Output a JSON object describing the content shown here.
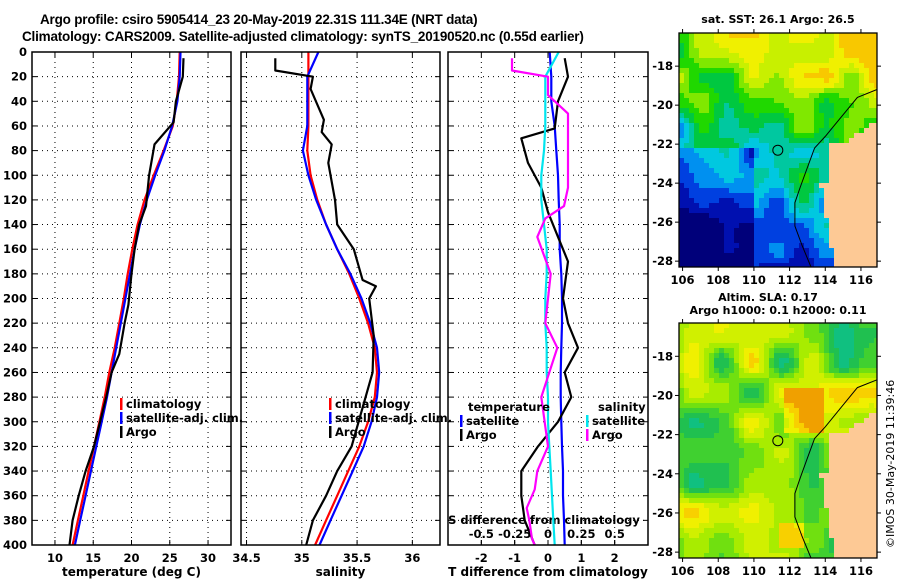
{
  "header": {
    "line1": "Argo profile: csiro 5905414_23 20-May-2019 22.31S 111.34E (NRT data)",
    "line2": "Climatology: CARS2009. Satellite-adjusted climatology: synTS_20190520.nc (0.55d earlier)"
  },
  "colors": {
    "climatology": "#ff0000",
    "satellite_adj": "#0000ff",
    "argo": "#000000",
    "s_satellite": "#00e5ee",
    "s_argo": "#ff00ff",
    "land": "#fdc995"
  },
  "chart_data": [
    {
      "id": "temperature",
      "type": "line",
      "xlabel": "temperature (deg C)",
      "ylabel": "",
      "xlim": [
        7,
        33
      ],
      "ylim": [
        400,
        0
      ],
      "xticks": [
        10,
        15,
        20,
        25,
        30
      ],
      "yticks": [
        0,
        20,
        40,
        60,
        80,
        100,
        120,
        140,
        160,
        180,
        200,
        220,
        240,
        260,
        280,
        300,
        320,
        340,
        360,
        380,
        400
      ],
      "grid": true,
      "legend": {
        "position": "center-right",
        "entries": [
          "climatology",
          "satellite-adj. clim.",
          "Argo"
        ]
      },
      "series": [
        {
          "name": "climatology",
          "color": "#ff0000",
          "x": [
            26.3,
            26.2,
            25.9,
            25.4,
            24.2,
            22.9,
            21.7,
            20.8,
            20.1,
            19.5,
            19.0,
            18.4,
            17.8,
            17.1,
            16.5,
            15.8,
            15.1,
            14.4,
            13.7,
            13.0,
            12.3
          ],
          "y": [
            0,
            20,
            40,
            60,
            80,
            100,
            120,
            140,
            160,
            180,
            200,
            220,
            240,
            260,
            280,
            300,
            320,
            340,
            360,
            380,
            400
          ]
        },
        {
          "name": "satellite-adj. clim.",
          "color": "#0000ff",
          "x": [
            26.4,
            26.3,
            26.0,
            25.3,
            24.3,
            23.1,
            22.0,
            21.1,
            20.4,
            19.8,
            19.2,
            18.6,
            18.0,
            17.4,
            16.8,
            16.1,
            15.4,
            14.7,
            14.0,
            13.3,
            12.6
          ],
          "y": [
            0,
            20,
            40,
            60,
            80,
            100,
            120,
            140,
            160,
            180,
            200,
            220,
            240,
            260,
            280,
            300,
            320,
            340,
            360,
            380,
            400
          ]
        },
        {
          "name": "Argo",
          "color": "#000000",
          "x": [
            26.8,
            26.7,
            25.8,
            25.5,
            23.0,
            22.3,
            21.9,
            21.0,
            20.4,
            20.0,
            19.6,
            19.1,
            18.4,
            17.4,
            16.7,
            15.9,
            15.1,
            14.0,
            13.1,
            12.3,
            11.9
          ],
          "y": [
            5,
            20,
            40,
            57,
            75,
            100,
            125,
            140,
            160,
            180,
            205,
            220,
            245,
            260,
            280,
            300,
            320,
            340,
            360,
            380,
            400
          ]
        }
      ]
    },
    {
      "id": "salinity",
      "type": "line",
      "xlabel": "salinity",
      "xlim": [
        34.45,
        36.25
      ],
      "ylim": [
        400,
        0
      ],
      "xticks": [
        34.5,
        35,
        35.5,
        36
      ],
      "xtick_labels": [
        "34.5",
        "35",
        "35.5",
        "36"
      ],
      "grid": true,
      "legend": {
        "position": "center-right",
        "entries": [
          "climatology",
          "satellite-adj. clim.",
          "Argo"
        ]
      },
      "series": [
        {
          "name": "climatology",
          "color": "#ff0000",
          "x": [
            35.06,
            35.06,
            35.06,
            35.06,
            35.05,
            35.08,
            35.14,
            35.22,
            35.32,
            35.43,
            35.52,
            35.6,
            35.66,
            35.68,
            35.66,
            35.6,
            35.52,
            35.42,
            35.32,
            35.22,
            35.12
          ],
          "y": [
            0,
            20,
            40,
            60,
            80,
            100,
            120,
            140,
            160,
            180,
            200,
            220,
            240,
            260,
            280,
            300,
            320,
            340,
            360,
            380,
            400
          ]
        },
        {
          "name": "satellite-adj. clim.",
          "color": "#0000ff",
          "x": [
            35.15,
            35.05,
            35.05,
            35.05,
            35.01,
            35.06,
            35.13,
            35.22,
            35.32,
            35.44,
            35.54,
            35.62,
            35.68,
            35.7,
            35.68,
            35.63,
            35.56,
            35.46,
            35.36,
            35.26,
            35.16
          ],
          "y": [
            0,
            20,
            40,
            60,
            80,
            100,
            120,
            140,
            160,
            180,
            200,
            220,
            240,
            260,
            280,
            300,
            320,
            340,
            360,
            380,
            400
          ]
        },
        {
          "name": "Argo",
          "color": "#000000",
          "x": [
            34.76,
            34.76,
            35.1,
            35.08,
            35.2,
            35.18,
            35.27,
            35.24,
            35.3,
            35.32,
            35.47,
            35.55,
            35.67,
            35.61,
            35.65,
            35.64,
            35.45,
            35.32,
            35.22,
            35.1,
            35.04
          ],
          "y": [
            5,
            15,
            20,
            30,
            55,
            65,
            75,
            90,
            120,
            140,
            160,
            185,
            190,
            200,
            230,
            260,
            320,
            340,
            360,
            380,
            400
          ]
        }
      ]
    },
    {
      "id": "difference",
      "type": "line",
      "xlabel": "T difference from climatology",
      "xlim": [
        -3,
        3
      ],
      "ylim": [
        400,
        0
      ],
      "xticks": [
        -2,
        -1,
        0,
        1,
        2
      ],
      "grid": true,
      "secondary_axis": {
        "label": "S difference from climatology",
        "xlim": [
          -0.75,
          0.75
        ],
        "xticks": [
          -0.5,
          -0.25,
          0,
          0.25,
          0.5
        ],
        "xtick_labels": [
          "-0.5",
          "-0.25",
          "0",
          "0.25",
          "0.5"
        ]
      },
      "legend": {
        "temperature": {
          "title": "temperature",
          "entries": [
            "satellite",
            "Argo"
          ]
        },
        "salinity": {
          "title": "salinity",
          "entries": [
            "satellite",
            "Argo"
          ]
        }
      },
      "series": [
        {
          "name": "T satellite",
          "color": "#0000ff",
          "x": [
            0.05,
            0.1,
            0.1,
            0.2,
            0.25,
            0.3,
            0.32,
            0.35,
            0.35,
            0.4,
            0.42,
            0.42,
            0.4,
            0.38,
            0.38,
            0.4,
            0.42,
            0.45,
            0.45,
            0.48,
            0.5
          ],
          "y": [
            0,
            20,
            40,
            60,
            80,
            100,
            120,
            140,
            160,
            180,
            200,
            220,
            240,
            260,
            280,
            300,
            320,
            340,
            360,
            380,
            400
          ]
        },
        {
          "name": "T Argo",
          "color": "#000000",
          "x": [
            0.5,
            0.6,
            0.3,
            0.2,
            -0.8,
            -0.6,
            -0.2,
            0.0,
            0.3,
            0.6,
            0.45,
            0.6,
            0.9,
            0.5,
            0.7,
            0.3,
            -0.3,
            -0.8,
            -0.8,
            -0.7,
            -0.4
          ],
          "y": [
            5,
            20,
            40,
            62,
            70,
            90,
            110,
            130,
            150,
            170,
            200,
            220,
            240,
            260,
            280,
            300,
            320,
            340,
            360,
            380,
            400
          ]
        },
        {
          "name": "S satellite",
          "color": "#00e5ee",
          "x": [
            0.08,
            -0.02,
            -0.02,
            -0.02,
            -0.03,
            -0.05,
            -0.05,
            -0.03,
            -0.01,
            -0.01,
            -0.02,
            -0.02,
            -0.01,
            -0.01,
            0.0,
            0.0,
            0.01,
            0.02,
            0.03,
            0.04,
            0.05
          ],
          "y": [
            0,
            20,
            40,
            60,
            80,
            100,
            120,
            140,
            160,
            180,
            200,
            220,
            240,
            260,
            280,
            300,
            320,
            340,
            360,
            380,
            400
          ]
        },
        {
          "name": "S Argo",
          "color": "#ff00ff",
          "x": [
            -0.27,
            -0.27,
            0.0,
            0.0,
            0.15,
            0.15,
            0.15,
            0.12,
            -0.02,
            -0.08,
            0.02,
            -0.02,
            0.07,
            -0.05,
            0.0,
            -0.08,
            -0.1,
            -0.16,
            -0.14,
            -0.12,
            -0.1
          ],
          "y": [
            5,
            15,
            20,
            35,
            50,
            70,
            110,
            125,
            135,
            150,
            180,
            220,
            240,
            280,
            320,
            340,
            355,
            370,
            380,
            395,
            400
          ]
        }
      ]
    },
    {
      "id": "map-sst",
      "type": "heatmap",
      "title": "sat. SST: 26.1 Argo: 26.5",
      "xticks": [
        106,
        108,
        110,
        112,
        114,
        116
      ],
      "yticks": [
        -18,
        -20,
        -22,
        -24,
        -26,
        -28
      ],
      "xlim": [
        105.8,
        116.9
      ],
      "ylim": [
        -28.3,
        -16.3
      ],
      "marker": {
        "lon": 111.34,
        "lat": -22.31
      }
    },
    {
      "id": "map-sla",
      "type": "heatmap",
      "title_line1": "Altim. SLA: 0.17",
      "title_line2": "Argo h1000: 0.1 h2000: 0.11",
      "xticks": [
        106,
        108,
        110,
        112,
        114,
        116
      ],
      "yticks": [
        -18,
        -20,
        -22,
        -24,
        -26,
        -28
      ],
      "xlim": [
        105.8,
        116.9
      ],
      "ylim": [
        -28.3,
        -16.3
      ],
      "marker": {
        "lon": 111.34,
        "lat": -22.31
      }
    }
  ],
  "footer": {
    "copyright": "©IMOS 30-May-2019 11:39:46"
  }
}
